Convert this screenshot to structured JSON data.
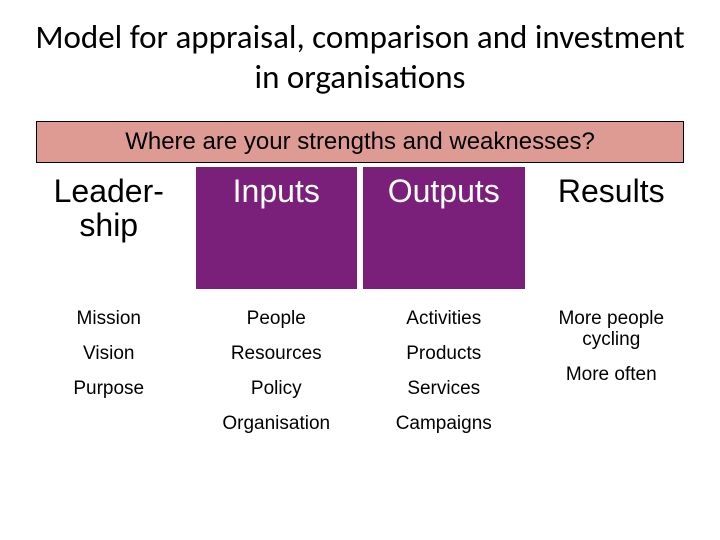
{
  "title": "Model for appraisal, comparison and investment in organisations",
  "banner": "Where are your strengths and weaknesses?",
  "columns": [
    {
      "header": "Leader-\nship",
      "bg": "white"
    },
    {
      "header": "Inputs",
      "bg": "purple"
    },
    {
      "header": "Outputs",
      "bg": "purple"
    },
    {
      "header": "Results",
      "bg": "white"
    }
  ],
  "rows": {
    "col0": [
      "Mission",
      "Vision",
      "Purpose"
    ],
    "col1": [
      "People",
      "Resources",
      "Policy",
      "Organisation"
    ],
    "col2": [
      "Activities",
      "Products",
      "Services",
      "Campaigns"
    ],
    "col3": [
      "More people cycling",
      "More often"
    ]
  },
  "colors": {
    "banner_bg": "#dd9b94",
    "purple": "#7a1f7a",
    "white": "#ffffff",
    "text": "#000000"
  },
  "fonts": {
    "title_size": 33,
    "banner_size": 24,
    "header_size": 32,
    "item_size": 19
  }
}
